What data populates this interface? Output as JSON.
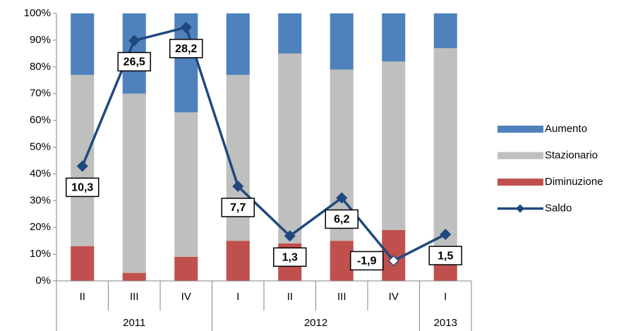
{
  "chart_data": {
    "type": "stacked_bar_line",
    "groups": [
      {
        "name": "2011",
        "categories": [
          "II",
          "III",
          "IV"
        ]
      },
      {
        "name": "2012",
        "categories": [
          "I",
          "II",
          "III",
          "IV"
        ]
      },
      {
        "name": "2013",
        "categories": [
          "I"
        ]
      }
    ],
    "series": [
      {
        "name": "Diminuzione",
        "color": "#c0504d",
        "type": "bar",
        "values": [
          13,
          3,
          9,
          15,
          14,
          15,
          19,
          6
        ]
      },
      {
        "name": "Stazionario",
        "color": "#bfbfbf",
        "type": "bar",
        "values": [
          64,
          67,
          54,
          62,
          71,
          64,
          63,
          81
        ]
      },
      {
        "name": "Aumento",
        "color": "#4f81bd",
        "type": "bar",
        "values": [
          23,
          30,
          37,
          23,
          15,
          21,
          18,
          13
        ]
      },
      {
        "name": "Saldo",
        "color": "#1f497d",
        "type": "line",
        "axis": "y2",
        "values": [
          10.3,
          26.5,
          28.2,
          7.7,
          1.3,
          6.2,
          -1.9,
          1.5
        ],
        "value_labels": [
          "10,3",
          "26,5",
          "28,2",
          "7,7",
          "1,3",
          "6,2",
          "-1,9",
          "1,5"
        ]
      }
    ],
    "ylim": [
      0,
      100
    ],
    "yticks": [
      {
        "value": 0,
        "label": "0%"
      },
      {
        "value": 10,
        "label": "10%"
      },
      {
        "value": 20,
        "label": "20%"
      },
      {
        "value": 30,
        "label": "30%"
      },
      {
        "value": 40,
        "label": "40%"
      },
      {
        "value": 50,
        "label": "50%"
      },
      {
        "value": 60,
        "label": "60%"
      },
      {
        "value": 70,
        "label": "70%"
      },
      {
        "value": 80,
        "label": "80%"
      },
      {
        "value": 90,
        "label": "90%"
      },
      {
        "value": 100,
        "label": "100%"
      }
    ],
    "y2lim": [
      -4.5,
      30
    ],
    "legend": "right"
  }
}
